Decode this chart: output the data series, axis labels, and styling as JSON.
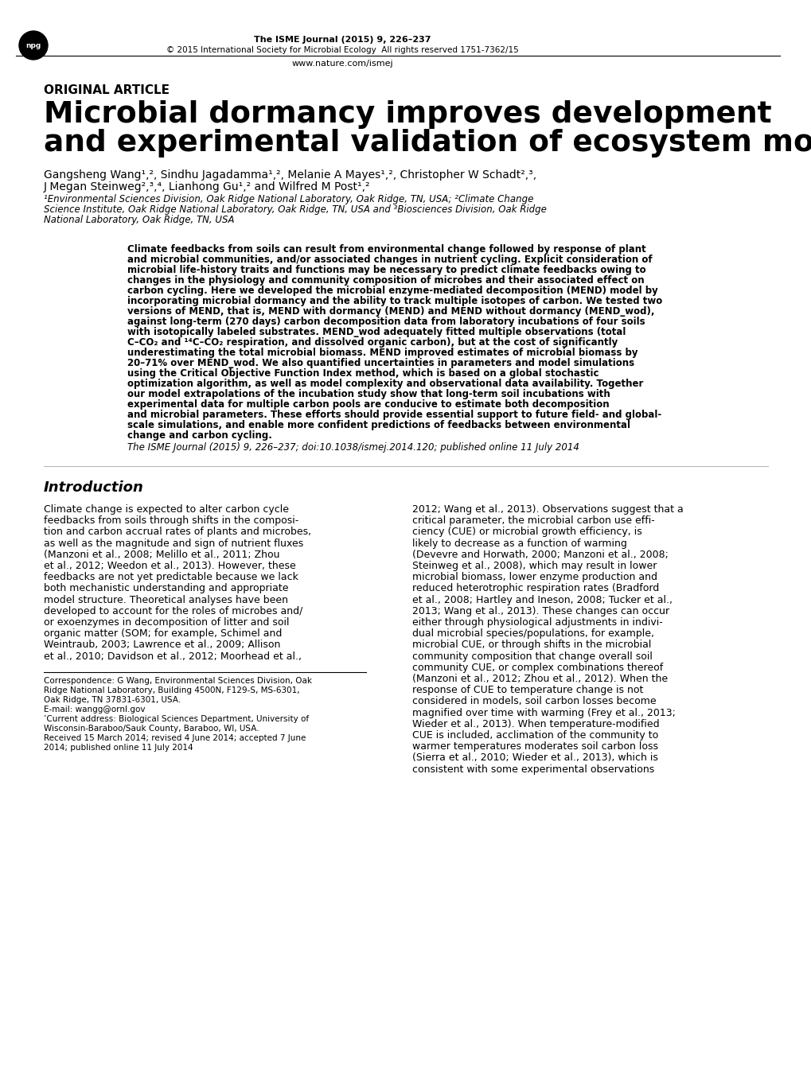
{
  "bg_color": "#ffffff",
  "header_journal": "The ISME Journal (2015) 9, 226–237",
  "header_copyright": "© 2015 International Society for Microbial Ecology  All rights reserved 1751-7362/15",
  "header_url": "www.nature.com/ismej",
  "article_type": "ORIGINAL ARTICLE",
  "title_line1": "Microbial dormancy improves development",
  "title_line2": "and experimental validation of ecosystem model",
  "authors_line1": "Gangsheng Wang¹˂², Sindhu Jagadamma¹˂², Melanie A Mayes¹˂², Christopher W Schadt²˂³,",
  "authors_line2": "J Megan Steinweg²˂³˂⁴, Lianhong Gu¹˂² and Wilfred M Post¹˂²",
  "affil1": "¹Environmental Sciences Division, Oak Ridge National Laboratory, Oak Ridge, TN, USA; ²Climate Change",
  "affil2": "Science Institute, Oak Ridge National Laboratory, Oak Ridge, TN, USA and ³Biosciences Division, Oak Ridge",
  "affil3": "National Laboratory, Oak Ridge, TN, USA",
  "abstract_lines": [
    "Climate feedbacks from soils can result from environmental change followed by response of plant",
    "and microbial communities, and/or associated changes in nutrient cycling. Explicit consideration of",
    "microbial life-history traits and functions may be necessary to predict climate feedbacks owing to",
    "changes in the physiology and community composition of microbes and their associated effect on",
    "carbon cycling. Here we developed the microbial enzyme-mediated decomposition (MEND) model by",
    "incorporating microbial dormancy and the ability to track multiple isotopes of carbon. We tested two",
    "versions of MEND, that is, MEND with dormancy (MEND) and MEND without dormancy (MEND_wod),",
    "against long-term (270 days) carbon decomposition data from laboratory incubations of four soils",
    "with isotopically labeled substrates. MEND_wod adequately fitted multiple observations (total",
    "C–CO₂ and ¹⁴C–CO₂ respiration, and dissolved organic carbon), but at the cost of significantly",
    "underestimating the total microbial biomass. MEND improved estimates of microbial biomass by",
    "20–71% over MEND_wod. We also quantified uncertainties in parameters and model simulations",
    "using the Critical Objective Function Index method, which is based on a global stochastic",
    "optimization algorithm, as well as model complexity and observational data availability. Together",
    "our model extrapolations of the incubation study show that long-term soil incubations with",
    "experimental data for multiple carbon pools are conducive to estimate both decomposition",
    "and microbial parameters. These efforts should provide essential support to future field- and global-",
    "scale simulations, and enable more confident predictions of feedbacks between environmental",
    "change and carbon cycling."
  ],
  "citation": "The ISME Journal (2015) 9, 226–237; doi:10.1038/ismej.2014.120; published online 11 July 2014",
  "intro_heading": "Introduction",
  "col1_lines": [
    "Climate change is expected to alter carbon cycle",
    "feedbacks from soils through shifts in the composi-",
    "tion and carbon accrual rates of plants and microbes,",
    "as well as the magnitude and sign of nutrient fluxes",
    "(Manzoni et al., 2008; Melillo et al., 2011; Zhou",
    "et al., 2012; Weedon et al., 2013). However, these",
    "feedbacks are not yet predictable because we lack",
    "both mechanistic understanding and appropriate",
    "model structure. Theoretical analyses have been",
    "developed to account for the roles of microbes and/",
    "or exoenzymes in decomposition of litter and soil",
    "organic matter (SOM; for example, Schimel and",
    "Weintraub, 2003; Lawrence et al., 2009; Allison",
    "et al., 2010; Davidson et al., 2012; Moorhead et al.,"
  ],
  "col2_lines": [
    "2012; Wang et al., 2013). Observations suggest that a",
    "critical parameter, the microbial carbon use effi-",
    "ciency (CUE) or microbial growth efficiency, is",
    "likely to decrease as a function of warming",
    "(Devevre and Horwath, 2000; Manzoni et al., 2008;",
    "Steinweg et al., 2008), which may result in lower",
    "microbial biomass, lower enzyme production and",
    "reduced heterotrophic respiration rates (Bradford",
    "et al., 2008; Hartley and Ineson, 2008; Tucker et al.,",
    "2013; Wang et al., 2013). These changes can occur",
    "either through physiological adjustments in indivi-",
    "dual microbial species/populations, for example,",
    "microbial CUE, or through shifts in the microbial",
    "community composition that change overall soil",
    "community CUE, or complex combinations thereof",
    "(Manzoni et al., 2012; Zhou et al., 2012). When the",
    "response of CUE to temperature change is not",
    "considered in models, soil carbon losses become",
    "magnified over time with warming (Frey et al., 2013;",
    "Wieder et al., 2013). When temperature-modified",
    "CUE is included, acclimation of the community to",
    "warmer temperatures moderates soil carbon loss",
    "(Sierra et al., 2010; Wieder et al., 2013), which is",
    "consistent with some experimental observations"
  ],
  "footer_lines": [
    "Correspondence: G Wang, Environmental Sciences Division, Oak",
    "Ridge National Laboratory, Building 4500N, F129-S, MS-6301,",
    "Oak Ridge, TN 37831-6301, USA.",
    "E-mail: wangg@ornl.gov",
    "’Current address: Biological Sciences Department, University of",
    "Wisconsin-Baraboo/Sauk County, Baraboo, WI, USA.",
    "Received 15 March 2014; revised 4 June 2014; accepted 7 June",
    "2014; published online 11 July 2014"
  ]
}
